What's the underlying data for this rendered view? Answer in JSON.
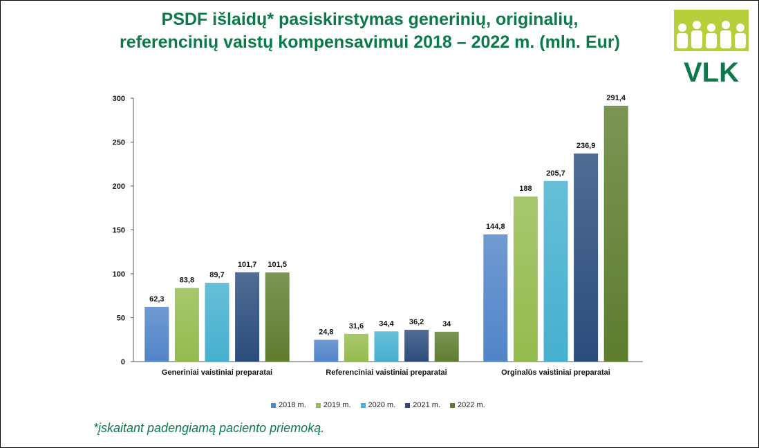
{
  "title_line1": "PSDF išlaidų* pasiskirstymas generinių, originalių,",
  "title_line2": "referencinių vaistų kompensavimui 2018 – 2022 m. (mln. Eur)",
  "logo_text": "VLK",
  "footnote": "*įskaitant padengiamą paciento priemoką.",
  "colors": {
    "title": "#0b7a4a",
    "logo_green": "#0b7a4a",
    "logo_lime": "#b6cf3a"
  },
  "chart_data": {
    "type": "bar",
    "categories": [
      "Generiniai vaistiniai preparatai",
      "Referenciniai vaistiniai preparatai",
      "Orginalūs vaistiniai preparatai"
    ],
    "series": [
      {
        "name": "2018 m.",
        "values": [
          62.3,
          24.8,
          144.8
        ],
        "labels": [
          "62,3",
          "24,8",
          "144,8"
        ],
        "color": "#5184c8"
      },
      {
        "name": "2019 m.",
        "values": [
          83.8,
          31.6,
          188
        ],
        "labels": [
          "83,8",
          "31,6",
          "188"
        ],
        "color": "#94bb4e"
      },
      {
        "name": "2020 m.",
        "values": [
          89.7,
          34.4,
          205.7
        ],
        "labels": [
          "89,7",
          "34,4",
          "205,7"
        ],
        "color": "#45b0cf"
      },
      {
        "name": "2021 m.",
        "values": [
          101.7,
          36.2,
          236.9
        ],
        "labels": [
          "101,7",
          "36,2",
          "236,9"
        ],
        "color": "#2b4c7c"
      },
      {
        "name": "2022 m.",
        "values": [
          101.5,
          34,
          291.4
        ],
        "labels": [
          "101,5",
          "34",
          "291,4"
        ],
        "color": "#5e7d2f"
      }
    ],
    "yticks": [
      "0",
      "50",
      "100",
      "150",
      "200",
      "250",
      "300"
    ],
    "ylim": [
      0,
      300
    ],
    "grid": false,
    "legend_position": "bottom"
  }
}
